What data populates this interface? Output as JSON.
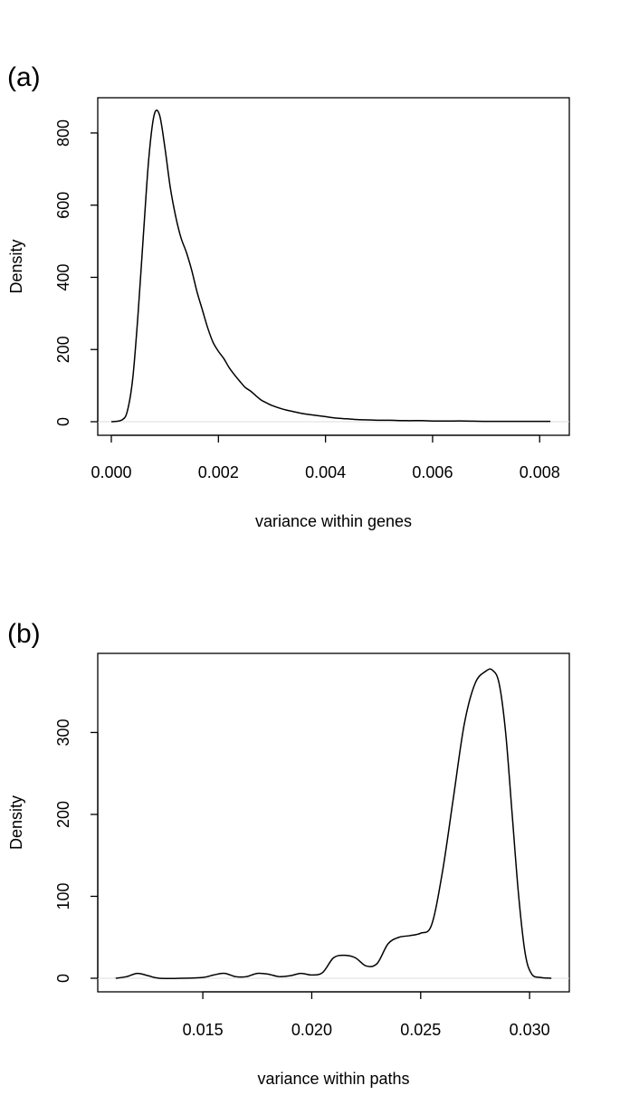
{
  "chart_data": [
    {
      "type": "line",
      "panel_label": "(a)",
      "xlabel": "variance within genes",
      "ylabel": "Density",
      "xlim": [
        0.0,
        0.0083
      ],
      "ylim": [
        0,
        860
      ],
      "x_ticks": [
        "0.000",
        "0.002",
        "0.004",
        "0.006",
        "0.008"
      ],
      "x_tick_values": [
        0.0,
        0.002,
        0.004,
        0.006,
        0.008
      ],
      "y_ticks": [
        "0",
        "200",
        "400",
        "600",
        "800"
      ],
      "y_tick_values": [
        0,
        200,
        400,
        600,
        800
      ],
      "baseline": true,
      "series": [
        {
          "x": [
            0.0,
            0.0002,
            0.0003,
            0.0004,
            0.0005,
            0.0006,
            0.0007,
            0.0008,
            0.0009,
            0.001,
            0.0011,
            0.0012,
            0.0013,
            0.0014,
            0.0015,
            0.0016,
            0.0017,
            0.0018,
            0.0019,
            0.002,
            0.0021,
            0.0022,
            0.0023,
            0.0024,
            0.0025,
            0.0026,
            0.0027,
            0.0028,
            0.0029,
            0.003,
            0.0032,
            0.0034,
            0.0036,
            0.0038,
            0.004,
            0.0042,
            0.0044,
            0.0046,
            0.0048,
            0.005,
            0.0052,
            0.0055,
            0.0058,
            0.006,
            0.0063,
            0.0066,
            0.007,
            0.0075,
            0.008,
            0.0082
          ],
          "values": [
            0,
            5,
            30,
            120,
            300,
            520,
            730,
            850,
            850,
            760,
            650,
            570,
            510,
            470,
            420,
            360,
            310,
            260,
            220,
            195,
            175,
            150,
            130,
            112,
            95,
            85,
            72,
            60,
            52,
            45,
            35,
            28,
            22,
            18,
            14,
            10,
            8,
            6,
            5,
            4,
            4,
            3,
            3,
            2,
            2,
            2,
            1,
            1,
            1,
            1
          ]
        }
      ]
    },
    {
      "type": "line",
      "panel_label": "(b)",
      "xlabel": "variance within paths",
      "ylabel": "Density",
      "xlim": [
        0.0108,
        0.0312
      ],
      "ylim": [
        0,
        380
      ],
      "x_ticks": [
        "0.015",
        "0.020",
        "0.025",
        "0.030"
      ],
      "x_tick_values": [
        0.015,
        0.02,
        0.025,
        0.03
      ],
      "y_ticks": [
        "0",
        "100",
        "200",
        "300"
      ],
      "y_tick_values": [
        0,
        100,
        200,
        300
      ],
      "baseline": true,
      "series": [
        {
          "x": [
            0.011,
            0.0115,
            0.012,
            0.0125,
            0.013,
            0.014,
            0.015,
            0.0155,
            0.016,
            0.0165,
            0.017,
            0.0175,
            0.018,
            0.0185,
            0.019,
            0.0195,
            0.02,
            0.0205,
            0.021,
            0.0215,
            0.022,
            0.0225,
            0.023,
            0.0235,
            0.024,
            0.0245,
            0.025,
            0.0255,
            0.026,
            0.0265,
            0.027,
            0.0275,
            0.028,
            0.0283,
            0.0286,
            0.0289,
            0.0292,
            0.0295,
            0.0298,
            0.0301,
            0.0305,
            0.031
          ],
          "values": [
            0,
            2,
            6,
            3,
            0,
            0,
            1,
            4,
            6,
            2,
            2,
            6,
            5,
            2,
            3,
            6,
            4,
            7,
            25,
            28,
            25,
            15,
            18,
            42,
            50,
            52,
            55,
            65,
            130,
            220,
            310,
            360,
            375,
            376,
            360,
            300,
            200,
            100,
            30,
            5,
            1,
            0
          ]
        }
      ]
    }
  ]
}
